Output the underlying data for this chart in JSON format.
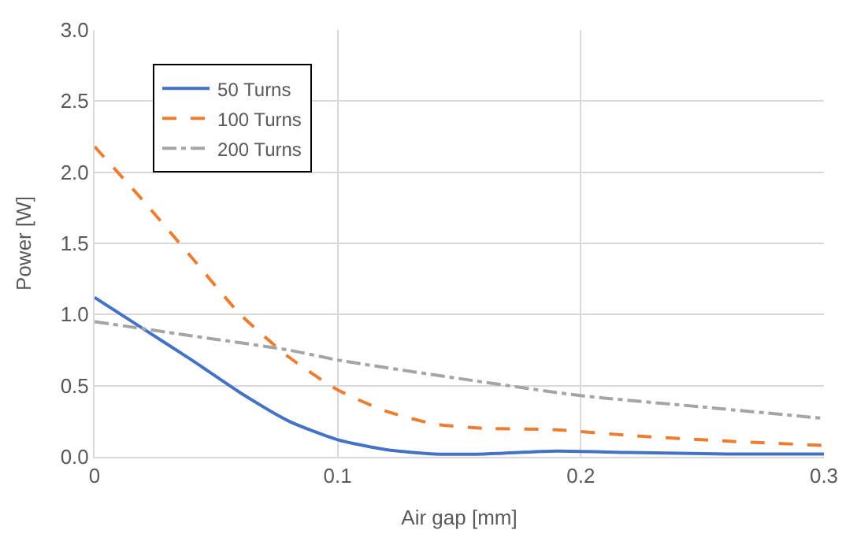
{
  "chart_data": {
    "type": "line",
    "xlabel": "Air gap [mm]",
    "ylabel": "Power [W]",
    "xlim": [
      0,
      0.3
    ],
    "xticks": [
      {
        "value": 0,
        "label": "0"
      },
      0.1,
      0.2,
      0.3
    ],
    "ylim": [
      0,
      3.0
    ],
    "yticks": [
      {
        "value": 0,
        "label": "0.0"
      },
      0.5,
      {
        "value": 1,
        "label": "1.0"
      },
      1.5,
      {
        "value": 2,
        "label": "2.0"
      },
      2.5,
      {
        "value": 3,
        "label": "3.0"
      }
    ],
    "grid": true,
    "legend": "top left",
    "marker": "none",
    "x": [
      0,
      0.02,
      0.04,
      0.06,
      0.08,
      0.1,
      0.12,
      0.14,
      0.16,
      0.19,
      0.22,
      0.26,
      0.3
    ],
    "series": [
      {
        "name": "50 Turns",
        "color": "#4472c4",
        "line_style": "solid",
        "values": [
          1.12,
          0.9,
          0.68,
          0.45,
          0.25,
          0.12,
          0.05,
          0.02,
          0.02,
          0.04,
          0.03,
          0.02,
          0.02
        ]
      },
      {
        "name": "100 Turns",
        "color": "#ed7d31",
        "line_style": "dashed",
        "values": [
          2.18,
          1.8,
          1.4,
          1.0,
          0.7,
          0.47,
          0.32,
          0.23,
          0.2,
          0.19,
          0.15,
          0.11,
          0.08
        ]
      },
      {
        "name": "200 Turns",
        "color": "#a5a5a5",
        "line_style": "dashdot",
        "x": [
          0,
          0.04,
          0.08,
          0.1,
          0.15,
          0.2,
          0.25,
          0.3
        ],
        "values": [
          0.95,
          0.85,
          0.75,
          0.68,
          0.55,
          0.43,
          0.35,
          0.27
        ]
      }
    ]
  }
}
